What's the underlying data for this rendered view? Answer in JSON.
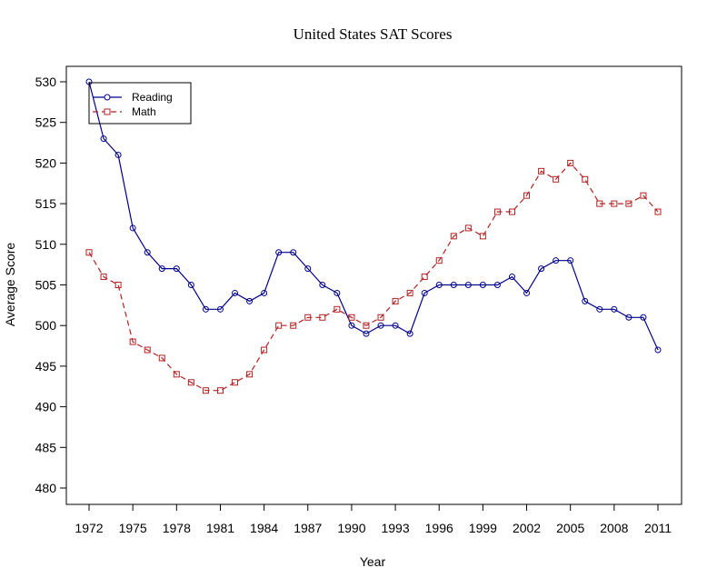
{
  "chart_data": {
    "type": "line",
    "title": "United States SAT Scores",
    "xlabel": "Year",
    "ylabel": "Average Score",
    "xlim": [
      1972,
      2011
    ],
    "ylim": [
      480,
      530
    ],
    "x_ticks": [
      "1972",
      "1975",
      "1978",
      "1981",
      "1984",
      "1987",
      "1990",
      "1993",
      "1996",
      "1999",
      "2002",
      "2005",
      "2008",
      "2011"
    ],
    "y_ticks": [
      "480",
      "485",
      "490",
      "495",
      "500",
      "505",
      "510",
      "515",
      "520",
      "525",
      "530"
    ],
    "legend_position": "top-left",
    "grid": false,
    "x": [
      1972,
      1973,
      1974,
      1975,
      1976,
      1977,
      1978,
      1979,
      1980,
      1981,
      1982,
      1983,
      1984,
      1985,
      1986,
      1987,
      1988,
      1989,
      1990,
      1991,
      1992,
      1993,
      1994,
      1995,
      1996,
      1997,
      1998,
      1999,
      2000,
      2001,
      2002,
      2003,
      2004,
      2005,
      2006,
      2007,
      2008,
      2009,
      2010,
      2011
    ],
    "series": [
      {
        "name": "Reading",
        "color": "#00008B",
        "line_style": "solid",
        "marker": "circle",
        "values": [
          530,
          523,
          521,
          512,
          509,
          507,
          507,
          505,
          502,
          502,
          504,
          503,
          504,
          509,
          509,
          507,
          505,
          504,
          500,
          499,
          500,
          500,
          499,
          504,
          505,
          505,
          505,
          505,
          505,
          506,
          504,
          507,
          508,
          508,
          503,
          502,
          502,
          501,
          501,
          497
        ]
      },
      {
        "name": "Math",
        "color": "#B22222",
        "line_style": "dashed",
        "marker": "square",
        "values": [
          509,
          506,
          505,
          498,
          497,
          496,
          494,
          493,
          492,
          492,
          493,
          494,
          497,
          500,
          500,
          501,
          501,
          502,
          501,
          500,
          501,
          503,
          504,
          506,
          508,
          511,
          512,
          511,
          514,
          514,
          516,
          519,
          518,
          520,
          518,
          515,
          515,
          515,
          516,
          514
        ]
      }
    ]
  }
}
